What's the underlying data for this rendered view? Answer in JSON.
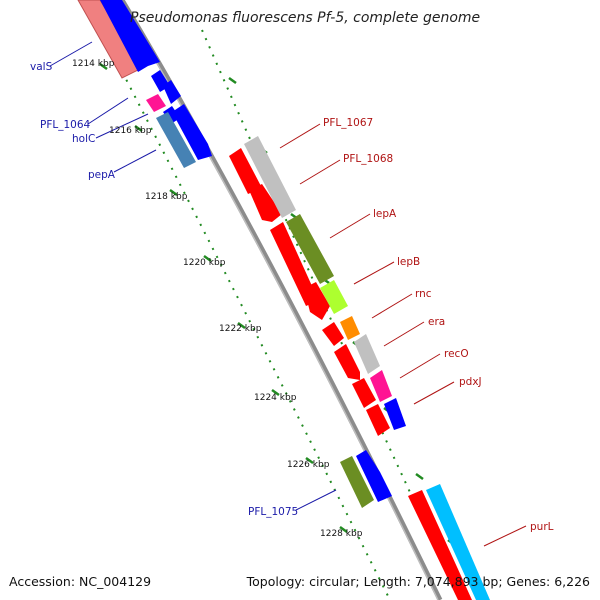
{
  "title": "Pseudomonas fluorescens Pf-5, complete genome",
  "footer": {
    "accession": "Accession: NC_004129",
    "summary": "Topology: circular; Length: 7,074,893 bp; Genes: 6,226"
  },
  "ticks": [
    "1214 kbp",
    "1216 kbp",
    "1218 kbp",
    "1220 kbp",
    "1222 kbp",
    "1224 kbp",
    "1226 kbp",
    "1228 kbp"
  ],
  "left_labels": [
    "valS",
    "PFL_1064",
    "holC",
    "pepA",
    "PFL_1075"
  ],
  "right_labels": [
    "PFL_1067",
    "PFL_1068",
    "lepA",
    "lepB",
    "rnc",
    "era",
    "recO",
    "pdxJ",
    "purL"
  ],
  "colors": {
    "backbone": "#8c8c8c",
    "red": "#ff0000",
    "blue": "#0000ff",
    "pink": "#f08080",
    "magenta": "#ff1493",
    "steel": "#4682b4",
    "gray": "#c0c0c0",
    "olive": "#6b8e23",
    "lime": "#adff2f",
    "orange": "#ff8c00",
    "cyan": "#00bfff",
    "ruler": "#228b22",
    "left_text": "#1a1aa8",
    "right_text": "#b01414"
  }
}
